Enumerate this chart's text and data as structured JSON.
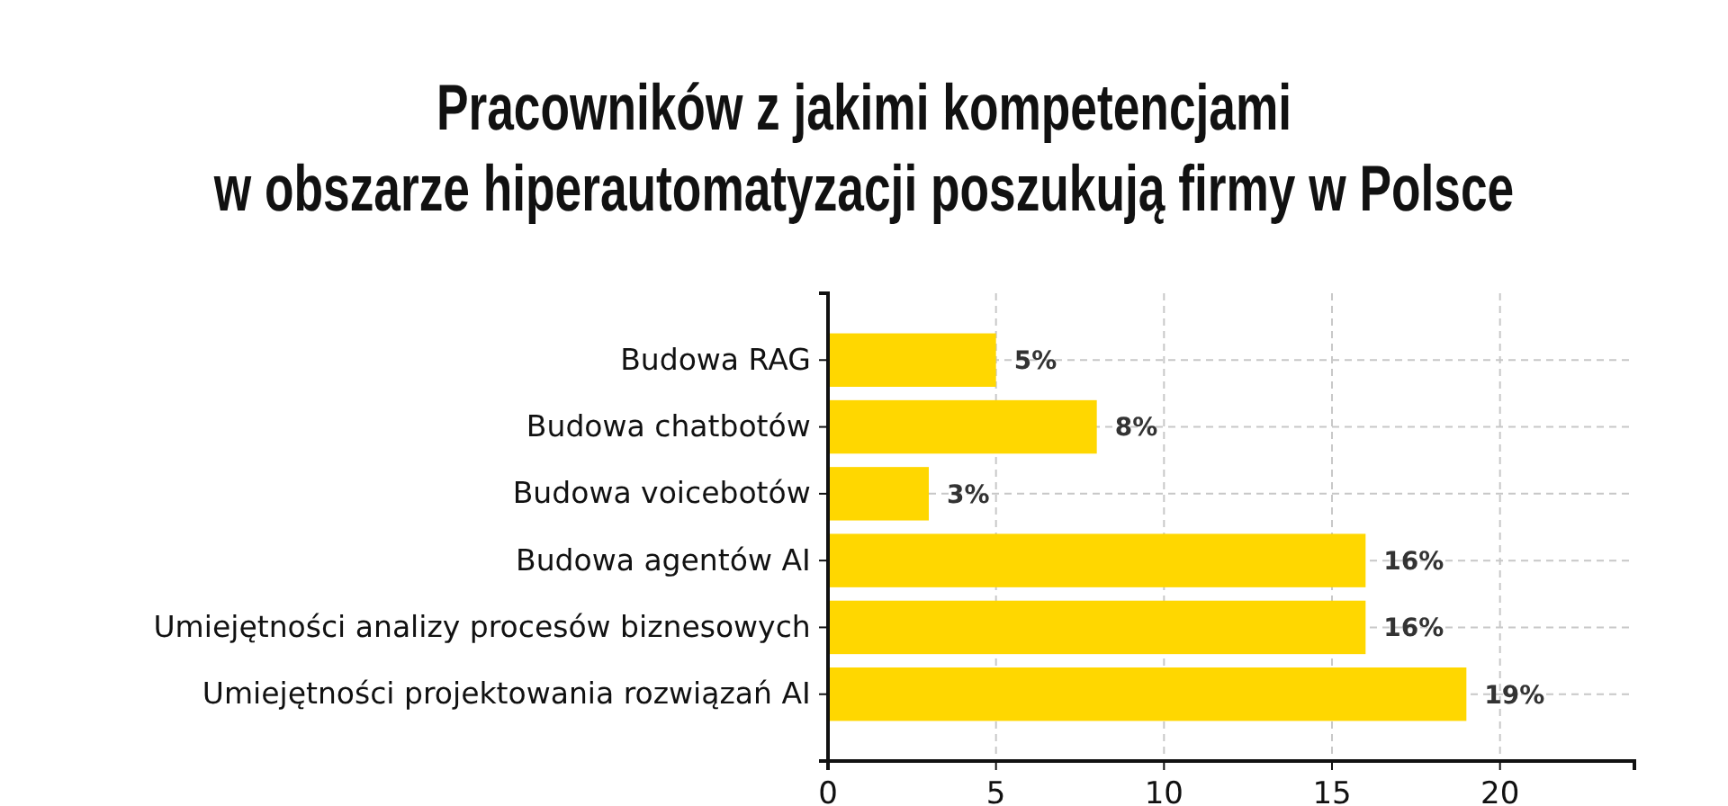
{
  "chart_data": {
    "type": "bar",
    "orientation": "horizontal",
    "title": "Pracowników z jakimi kompetencjami\nw obszarze hiperautomatyzacji poszukują firmy w Polsce",
    "categories": [
      "Budowa RAG",
      "Budowa chatbotów",
      "Budowa voicebotów",
      "Budowa agentów AI",
      "Umiejętności analizy procesów biznesowych",
      "Umiejętności projektowania rozwiązań AI"
    ],
    "values": [
      5,
      8,
      3,
      16,
      16,
      19
    ],
    "value_labels": [
      "5%",
      "8%",
      "3%",
      "16%",
      "16%",
      "19%"
    ],
    "color": "#ffd700",
    "xlim": [
      0,
      24
    ],
    "xticks": [
      0,
      5,
      10,
      15,
      20
    ],
    "grid": true
  }
}
